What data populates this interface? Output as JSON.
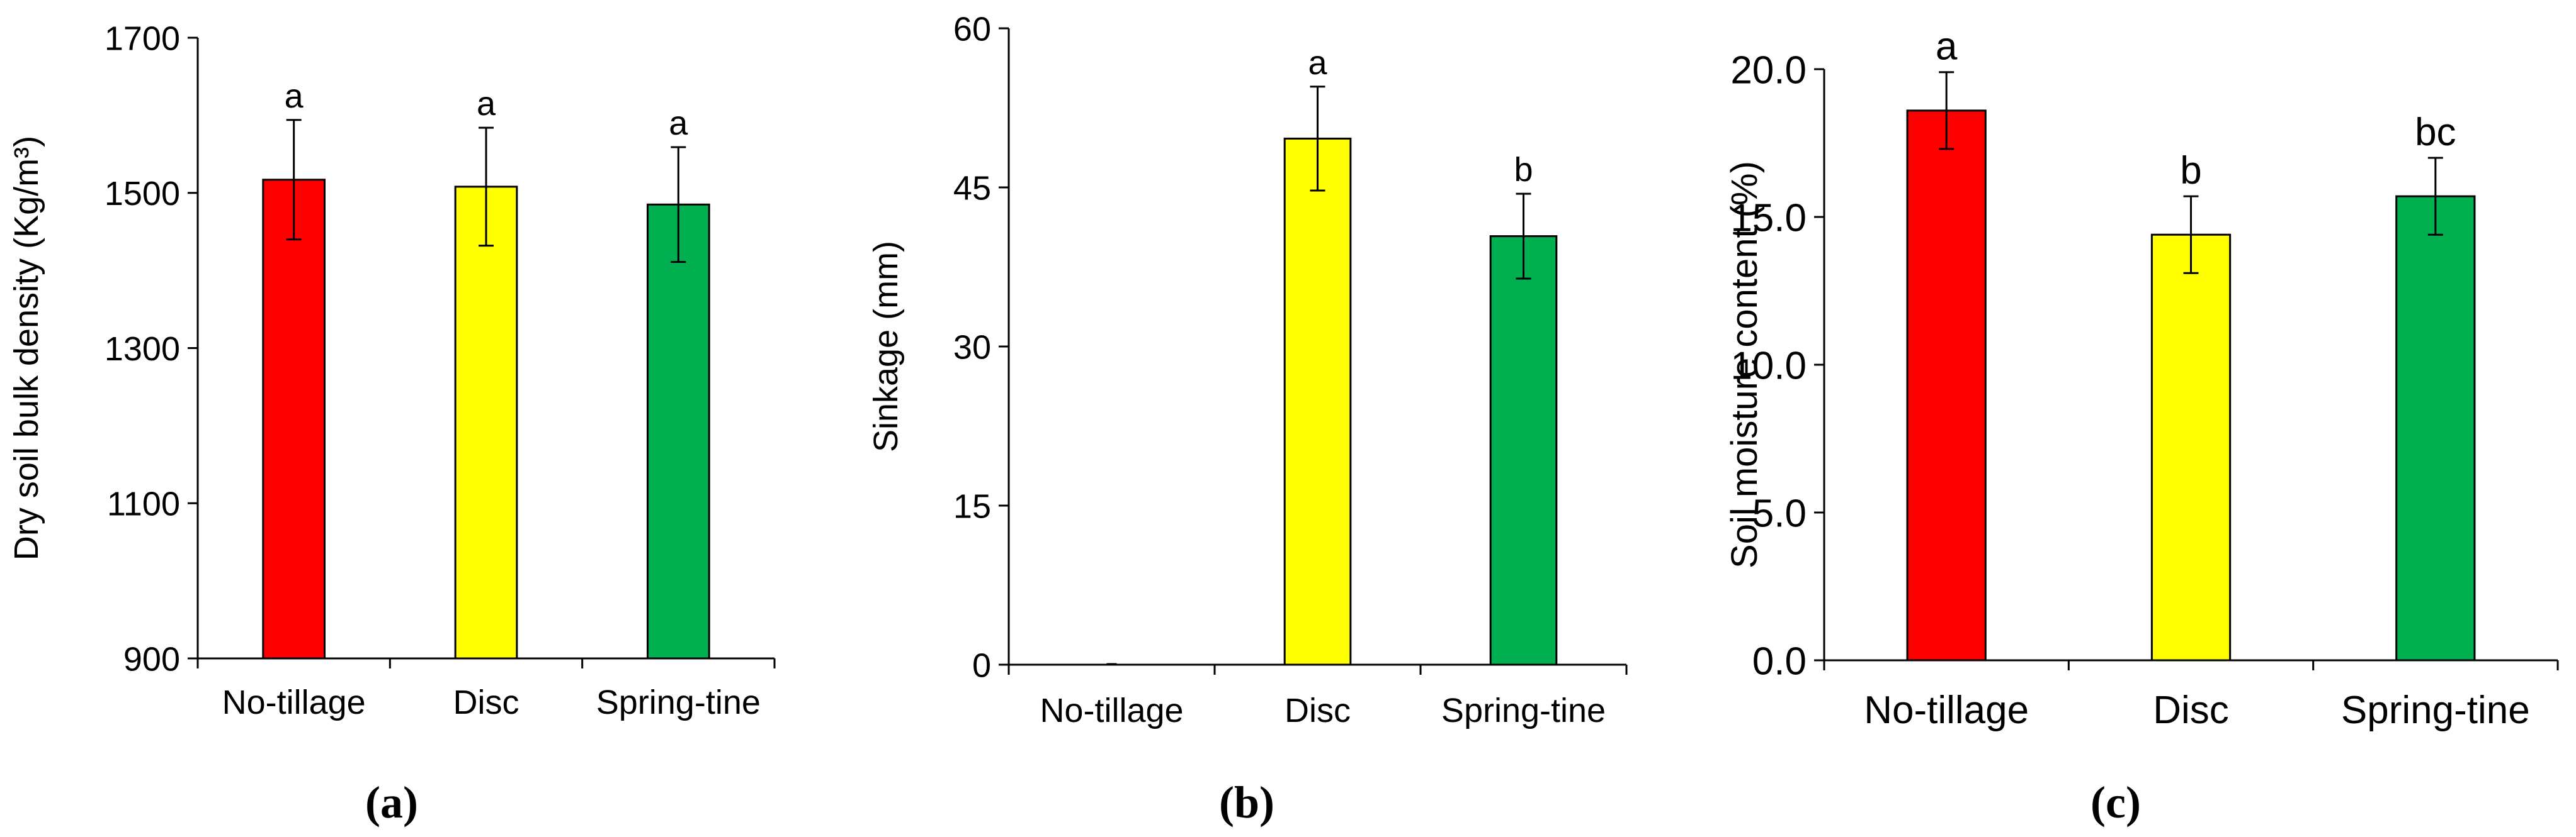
{
  "figure": {
    "panels": [
      "a",
      "b",
      "c"
    ]
  },
  "chart_data": [
    {
      "type": "bar",
      "caption": "(a)",
      "title": "",
      "xlabel": "",
      "ylabel": "Dry soil bulk density (Kg/m³)",
      "categories": [
        "No-tillage",
        "Disc",
        "Spring-tine"
      ],
      "values": [
        1517,
        1508,
        1485
      ],
      "errors": [
        77,
        76,
        74
      ],
      "significance": [
        "a",
        "a",
        "a"
      ],
      "colors": [
        "#ff0000",
        "#ffff00",
        "#00b050"
      ],
      "ylim": [
        900,
        1700
      ],
      "yticks": [
        900,
        1100,
        1300,
        1500,
        1700
      ],
      "ytick_labels": [
        "900",
        "1100",
        "1300",
        "1500",
        "1700"
      ],
      "grid": false,
      "legend": "none"
    },
    {
      "type": "bar",
      "caption": "(b)",
      "title": "",
      "xlabel": "",
      "ylabel": "Sinkage (mm)",
      "categories": [
        "No-tillage",
        "Disc",
        "Spring-tine"
      ],
      "values": [
        0,
        49.6,
        40.4
      ],
      "errors": [
        0,
        4.9,
        4.0
      ],
      "significance": [
        "",
        "a",
        "b"
      ],
      "colors": [
        "#ff0000",
        "#ffff00",
        "#00b050"
      ],
      "ylim": [
        0,
        60
      ],
      "yticks": [
        0,
        15,
        30,
        45,
        60
      ],
      "ytick_labels": [
        "0",
        "15",
        "30",
        "45",
        "60"
      ],
      "grid": false,
      "legend": "none"
    },
    {
      "type": "bar",
      "caption": "(c)",
      "title": "",
      "xlabel": "",
      "ylabel": "Soil moisture content (%)",
      "categories": [
        "No-tillage",
        "Disc",
        "Spring-tine"
      ],
      "values": [
        18.6,
        14.4,
        15.7
      ],
      "errors": [
        1.3,
        1.3,
        1.3
      ],
      "significance": [
        "a",
        "b",
        "bc"
      ],
      "colors": [
        "#ff0000",
        "#ffff00",
        "#00b050"
      ],
      "ylim": [
        0,
        20
      ],
      "yticks": [
        0,
        5,
        10,
        15,
        20
      ],
      "ytick_labels": [
        "0.0",
        "5.0",
        "10.0",
        "15.0",
        "20.0"
      ],
      "grid": false,
      "legend": "none"
    }
  ]
}
